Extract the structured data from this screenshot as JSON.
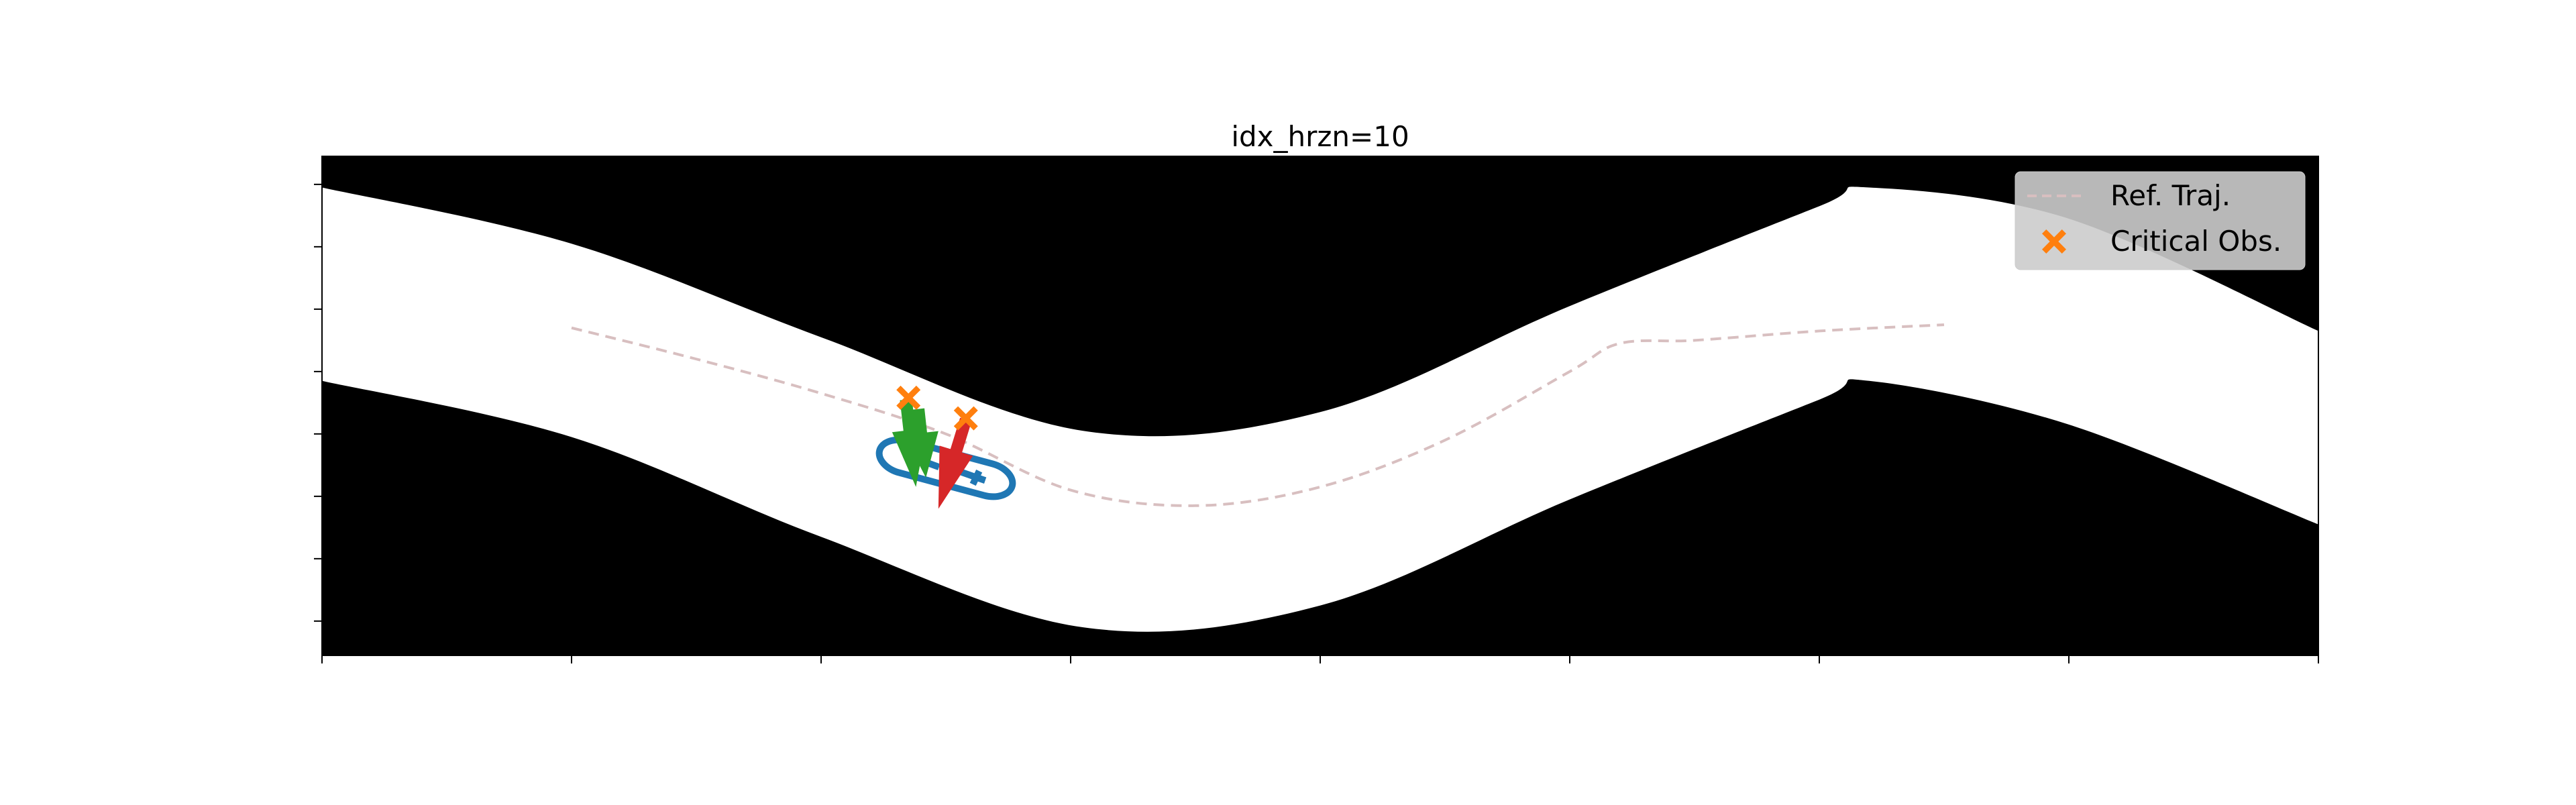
{
  "chart_data": {
    "type": "line",
    "title": "idx_hrzn=10",
    "xlabel": "",
    "ylabel": "",
    "xlim": [
      0,
      8
    ],
    "ylim": [
      0,
      8
    ],
    "grid": false,
    "tick_labels_visible": false,
    "x_ticks": [
      0,
      1,
      2,
      3,
      4,
      5,
      6,
      7,
      8
    ],
    "y_ticks": [
      0,
      1,
      2,
      3,
      4,
      5,
      6,
      7
    ],
    "background": {
      "description": "binary occupancy map",
      "obstacle_color": "#000000",
      "free_color": "#ffffff",
      "corridor_upper_boundary": [
        {
          "x": 0.0,
          "y": 7.5
        },
        {
          "x": 1.0,
          "y": 6.6
        },
        {
          "x": 2.0,
          "y": 5.1
        },
        {
          "x": 3.05,
          "y": 3.6
        },
        {
          "x": 4.0,
          "y": 3.9
        },
        {
          "x": 5.0,
          "y": 5.6
        },
        {
          "x": 6.0,
          "y": 7.2
        },
        {
          "x": 6.2,
          "y": 7.5
        },
        {
          "x": 7.0,
          "y": 7.0
        },
        {
          "x": 8.0,
          "y": 5.2
        }
      ],
      "corridor_lower_boundary": [
        {
          "x": 0.0,
          "y": 4.4
        },
        {
          "x": 1.0,
          "y": 3.5
        },
        {
          "x": 2.0,
          "y": 1.9
        },
        {
          "x": 3.05,
          "y": 0.45
        },
        {
          "x": 4.0,
          "y": 0.8
        },
        {
          "x": 5.0,
          "y": 2.5
        },
        {
          "x": 6.0,
          "y": 4.1
        },
        {
          "x": 6.2,
          "y": 4.4
        },
        {
          "x": 7.0,
          "y": 3.7
        },
        {
          "x": 8.0,
          "y": 2.1
        }
      ]
    },
    "series": [
      {
        "name": "Ref. Traj.",
        "style": "dashed",
        "color": "#d8bfc0",
        "points": [
          {
            "x": 1.0,
            "y": 5.25
          },
          {
            "x": 1.5,
            "y": 4.75
          },
          {
            "x": 2.0,
            "y": 4.2
          },
          {
            "x": 2.5,
            "y": 3.55
          },
          {
            "x": 3.0,
            "y": 2.65
          },
          {
            "x": 3.5,
            "y": 2.4
          },
          {
            "x": 4.0,
            "y": 2.7
          },
          {
            "x": 4.5,
            "y": 3.45
          },
          {
            "x": 5.0,
            "y": 4.55
          },
          {
            "x": 5.2,
            "y": 5.0
          },
          {
            "x": 5.5,
            "y": 5.05
          },
          {
            "x": 6.0,
            "y": 5.2
          },
          {
            "x": 6.5,
            "y": 5.3
          }
        ]
      },
      {
        "name": "Critical Obs.",
        "marker": "X",
        "color": "#ff7f0e",
        "points": [
          {
            "x": 2.35,
            "y": 4.13
          },
          {
            "x": 2.58,
            "y": 3.8
          }
        ]
      }
    ],
    "vehicle": {
      "outline_color": "#1f77b4",
      "center": {
        "x": 2.5,
        "y": 3.0
      },
      "heading_deg": -15,
      "length": 0.55,
      "width": 0.25,
      "rounding": 0.1
    },
    "arrows": [
      {
        "color": "#2ca02c",
        "from": {
          "x": 2.34,
          "y": 4.1
        },
        "to": {
          "x": 2.38,
          "y": 2.7
        }
      },
      {
        "color": "#2ca02c",
        "from": {
          "x": 2.39,
          "y": 3.95
        },
        "to": {
          "x": 2.42,
          "y": 2.85
        }
      },
      {
        "color": "#d62728",
        "from": {
          "x": 2.58,
          "y": 3.78
        },
        "to": {
          "x": 2.47,
          "y": 2.35
        }
      }
    ],
    "legend": {
      "placement": "upper right",
      "entries": [
        {
          "label": "Ref. Traj.",
          "symbol": "dashed-line",
          "color": "#d8bfc0"
        },
        {
          "label": "Critical Obs.",
          "symbol": "x-marker",
          "color": "#ff7f0e"
        }
      ]
    }
  }
}
